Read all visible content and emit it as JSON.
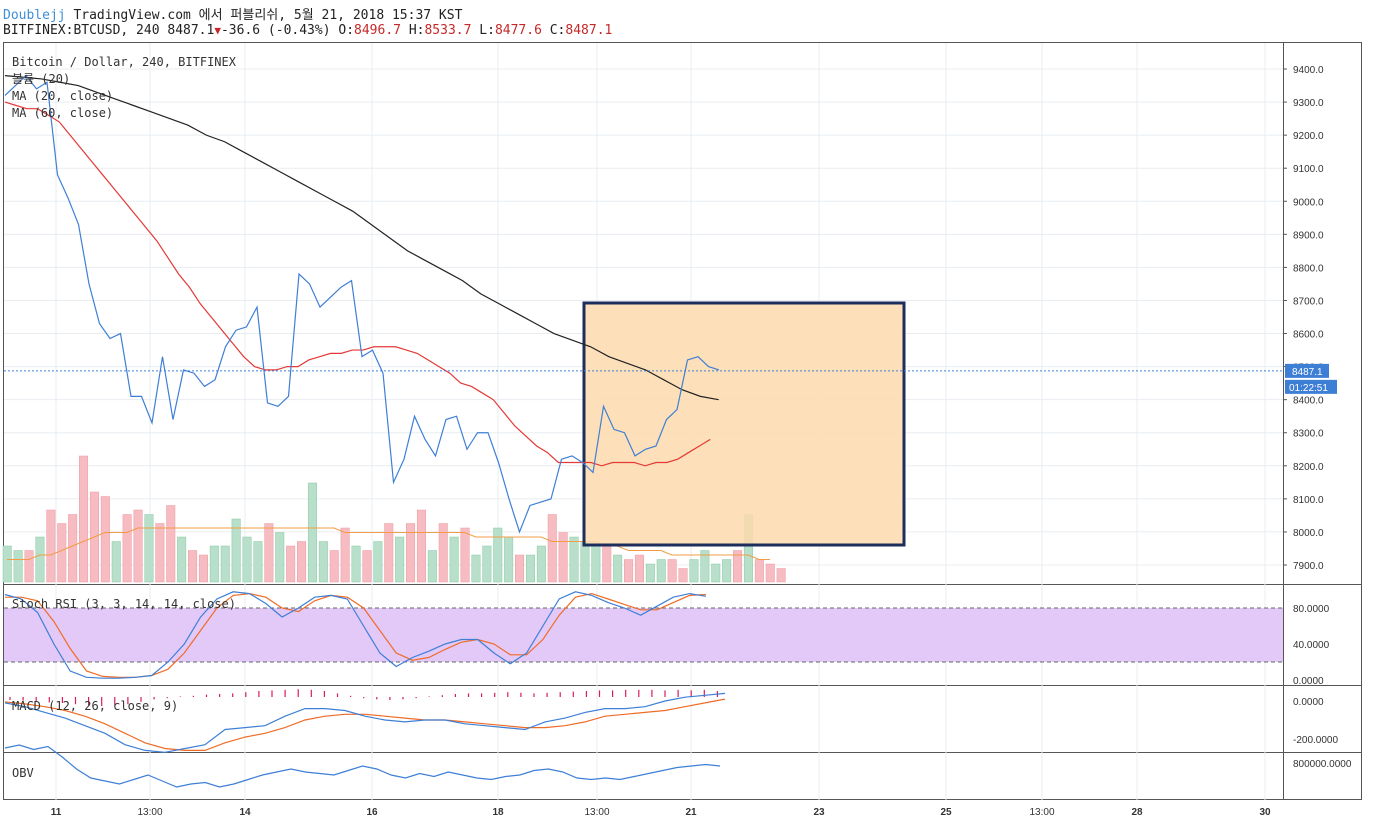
{
  "header": {
    "author": "Doublejj",
    "published": "TradingView.com 에서 퍼블리쉬, 5월 21, 2018 15:37 KST",
    "symbol": "BITFINEX:BTCUSD, 240",
    "last": "8487.1",
    "change": "-36.6 (-0.43%)",
    "open_label": "O:",
    "open": "8496.7",
    "high_label": "H:",
    "high": "8533.7",
    "low_label": "L:",
    "low": "8477.6",
    "close_label": "C:",
    "close": "8487.1"
  },
  "legend": {
    "title": "Bitcoin / Dollar, 240, BITFINEX",
    "volume": "볼륨 (20)",
    "ma20": "MA (20, close)",
    "ma60": "MA (60, close)"
  },
  "price_axis": {
    "ticks": [
      "9400.0",
      "9300.0",
      "9200.0",
      "9100.0",
      "9000.0",
      "8900.0",
      "8800.0",
      "8700.0",
      "8600.0",
      "8500.0",
      "8400.0",
      "8300.0",
      "8200.0",
      "8100.0",
      "8000.0",
      "7900.0"
    ],
    "last_price_badge": "8487.1",
    "countdown_badge": "01:22:51"
  },
  "rsi": {
    "label": "Stoch RSI (3, 3, 14, 14, close)",
    "ticks": [
      "80.0000",
      "40.0000",
      "0.0000"
    ]
  },
  "macd": {
    "label": "MACD (12, 26, close, 9)",
    "ticks": [
      "0.0000",
      "-200.0000"
    ]
  },
  "obv": {
    "label": "OBV",
    "ticks": [
      "800000.0000"
    ]
  },
  "x_axis": {
    "labels": [
      "11",
      "13:00",
      "14",
      "16",
      "18",
      "13:00",
      "21",
      "23",
      "25",
      "13:00",
      "28",
      "30"
    ]
  },
  "colors": {
    "price_line": "#3e7fd6",
    "ma20": "#e53935",
    "ma60": "#222222",
    "vol_up": "#b7dfc9",
    "vol_down": "#f6bcc2",
    "vol_ma": "#f39c45",
    "rsi_band": "#e3c9f8",
    "rsi_k": "#3e7fd6",
    "rsi_d": "#ef6c27",
    "macd_hist": "#d81b60",
    "highlight_fill": "#fddbad",
    "highlight_border": "#1e2e5c",
    "badge_blue": "#3e7fd6"
  },
  "chart_data": [
    {
      "type": "line",
      "title": "Bitcoin / Dollar, 240, BITFINEX",
      "ylim": [
        7850,
        9460
      ],
      "y_ticks": [
        9400,
        9300,
        9200,
        9100,
        9000,
        8900,
        8800,
        8700,
        8600,
        8500,
        8400,
        8300,
        8200,
        8100,
        8000,
        7900
      ],
      "x_labels": [
        "11",
        "13:00",
        "14",
        "16",
        "18",
        "13:00",
        "21",
        "23",
        "25",
        "13:00",
        "28",
        "30"
      ],
      "series": [
        {
          "name": "BITFINEX:BTCUSD",
          "values": [
            9320,
            9350,
            9380,
            9340,
            9360,
            9080,
            9010,
            8930,
            8750,
            8630,
            8585,
            8600,
            8410,
            8410,
            8330,
            8530,
            8340,
            8490,
            8480,
            8440,
            8460,
            8560,
            8610,
            8620,
            8680,
            8390,
            8380,
            8410,
            8780,
            8750,
            8680,
            8710,
            8740,
            8760,
            8530,
            8550,
            8480,
            8150,
            8220,
            8350,
            8280,
            8230,
            8340,
            8350,
            8250,
            8300,
            8300,
            8210,
            8100,
            8000,
            8080,
            8090,
            8100,
            8220,
            8230,
            8210,
            8180,
            8380,
            8310,
            8300,
            8230,
            8250,
            8260,
            8340,
            8370,
            8520,
            8530,
            8500,
            8490
          ]
        },
        {
          "name": "MA (20, close)",
          "values": [
            9300,
            9290,
            9280,
            9280,
            9260,
            9240,
            9200,
            9160,
            9120,
            9080,
            9040,
            9000,
            8960,
            8920,
            8880,
            8830,
            8780,
            8740,
            8690,
            8650,
            8610,
            8570,
            8530,
            8500,
            8490,
            8490,
            8500,
            8500,
            8520,
            8530,
            8540,
            8540,
            8550,
            8550,
            8560,
            8560,
            8560,
            8550,
            8540,
            8520,
            8500,
            8480,
            8450,
            8440,
            8420,
            8400,
            8360,
            8320,
            8290,
            8260,
            8240,
            8210,
            8210,
            8210,
            8210,
            8200,
            8210,
            8210,
            8210,
            8200,
            8210,
            8210,
            8220,
            8240,
            8260,
            8280
          ]
        },
        {
          "name": "MA (60, close)",
          "values": [
            9380,
            9375,
            9370,
            9360,
            9350,
            9330,
            9310,
            9290,
            9270,
            9250,
            9230,
            9200,
            9180,
            9150,
            9120,
            9090,
            9060,
            9030,
            9000,
            8970,
            8930,
            8890,
            8850,
            8820,
            8790,
            8760,
            8720,
            8690,
            8660,
            8630,
            8600,
            8580,
            8560,
            8530,
            8510,
            8490,
            8460,
            8430,
            8410,
            8400
          ]
        }
      ]
    },
    {
      "type": "bar",
      "title": "볼륨 (20)",
      "values": [
        8,
        7,
        7,
        10,
        16,
        13,
        15,
        28,
        20,
        19,
        9,
        15,
        16,
        15,
        13,
        17,
        10,
        7,
        6,
        8,
        8,
        14,
        10,
        9,
        13,
        11,
        8,
        9,
        22,
        9,
        7,
        12,
        8,
        7,
        9,
        13,
        10,
        13,
        16,
        7,
        13,
        10,
        12,
        6,
        8,
        12,
        10,
        6,
        6,
        8,
        15,
        11,
        10,
        9,
        8,
        8,
        6,
        5,
        6,
        4,
        5,
        5,
        3,
        5,
        7,
        4,
        5,
        7,
        15,
        5,
        4,
        3
      ],
      "direction": [
        "u",
        "u",
        "d",
        "u",
        "d",
        "d",
        "d",
        "d",
        "d",
        "d",
        "u",
        "d",
        "d",
        "u",
        "d",
        "d",
        "u",
        "d",
        "d",
        "u",
        "u",
        "u",
        "u",
        "u",
        "d",
        "u",
        "d",
        "d",
        "u",
        "u",
        "d",
        "d",
        "u",
        "d",
        "u",
        "d",
        "u",
        "d",
        "d",
        "u",
        "d",
        "u",
        "d",
        "u",
        "u",
        "u",
        "u",
        "d",
        "u",
        "u",
        "d",
        "d",
        "u",
        "u",
        "u",
        "d",
        "u",
        "d",
        "d",
        "u",
        "u",
        "d",
        "d",
        "u",
        "u",
        "u",
        "u",
        "d",
        "u",
        "d",
        "d",
        "d"
      ],
      "ma_values": [
        5,
        5,
        5,
        6,
        6,
        7,
        8,
        9,
        10,
        11,
        11,
        11,
        12,
        12,
        12,
        12,
        12,
        12,
        12,
        12,
        12,
        12,
        12,
        12,
        12,
        12,
        12,
        12,
        12,
        12,
        12,
        11,
        11,
        11,
        11,
        11,
        11,
        11,
        11,
        11,
        11,
        11,
        11,
        10,
        10,
        10,
        10,
        10,
        10,
        10,
        9,
        9,
        9,
        9,
        9,
        8,
        8,
        7,
        7,
        7,
        7,
        6,
        6,
        6,
        6,
        6,
        6,
        6,
        6,
        5,
        5
      ]
    },
    {
      "type": "line",
      "title": "Stoch RSI (3, 3, 14, 14, close)",
      "ylim": [
        -5,
        100
      ],
      "band": [
        20,
        80
      ],
      "series": [
        {
          "name": "K",
          "values": [
            95,
            90,
            75,
            40,
            10,
            3,
            2,
            2,
            3,
            5,
            20,
            40,
            70,
            90,
            98,
            96,
            85,
            70,
            80,
            92,
            94,
            90,
            60,
            30,
            15,
            25,
            32,
            40,
            45,
            45,
            30,
            18,
            30,
            60,
            90,
            98,
            94,
            86,
            80,
            72,
            82,
            92,
            96,
            93
          ]
        },
        {
          "name": "D",
          "values": [
            92,
            92,
            88,
            65,
            35,
            10,
            4,
            3,
            3,
            5,
            12,
            30,
            55,
            80,
            94,
            96,
            92,
            80,
            76,
            88,
            94,
            92,
            80,
            55,
            30,
            22,
            25,
            34,
            42,
            45,
            40,
            28,
            28,
            45,
            72,
            92,
            96,
            90,
            84,
            78,
            78,
            86,
            94,
            95
          ]
        }
      ]
    },
    {
      "type": "line",
      "title": "MACD (12, 26, close, 9)",
      "ylim": [
        -300,
        50
      ],
      "series": [
        {
          "name": "MACD",
          "values": [
            -10,
            -30,
            -60,
            -90,
            -130,
            -170,
            -230,
            -260,
            -270,
            -250,
            -230,
            -150,
            -140,
            -130,
            -80,
            -40,
            -40,
            -50,
            -80,
            -100,
            -110,
            -100,
            -100,
            -120,
            -130,
            -140,
            -150,
            -110,
            -90,
            -60,
            -40,
            -40,
            -30,
            0,
            20,
            30,
            40
          ]
        },
        {
          "name": "Signal",
          "values": [
            -5,
            -15,
            -30,
            -50,
            -80,
            -120,
            -170,
            -220,
            -250,
            -260,
            -260,
            -220,
            -190,
            -170,
            -140,
            -100,
            -80,
            -70,
            -70,
            -80,
            -90,
            -100,
            -100,
            -110,
            -120,
            -130,
            -140,
            -140,
            -130,
            -110,
            -80,
            -70,
            -60,
            -50,
            -30,
            -10,
            10
          ]
        }
      ],
      "histogram": [
        -25,
        -30,
        -40,
        -45,
        -50,
        -60,
        -70,
        -75,
        -70,
        -60,
        -40,
        -20,
        -10,
        5,
        10,
        20,
        25,
        30,
        40,
        50,
        55,
        60,
        65,
        60,
        50,
        30,
        10,
        -10,
        -20,
        -25,
        -20,
        -10,
        5,
        15,
        25,
        30,
        30,
        35,
        40,
        35,
        30,
        35,
        40,
        45,
        50,
        55,
        55,
        60,
        60,
        60,
        55,
        60,
        55,
        60,
        50
      ]
    },
    {
      "type": "line",
      "title": "OBV",
      "ylim": [
        500000,
        900000
      ],
      "series": [
        {
          "name": "OBV",
          "values": [
            850000,
            860000,
            845000,
            855000,
            820000,
            780000,
            750000,
            740000,
            730000,
            745000,
            760000,
            740000,
            720000,
            730000,
            735000,
            720000,
            730000,
            745000,
            760000,
            770000,
            780000,
            770000,
            765000,
            760000,
            775000,
            790000,
            780000,
            760000,
            750000,
            765000,
            755000,
            770000,
            760000,
            750000,
            745000,
            755000,
            760000,
            775000,
            780000,
            770000,
            750000,
            745000,
            750000,
            745000,
            755000,
            765000,
            775000,
            785000,
            790000,
            795000,
            790000
          ]
        }
      ]
    }
  ]
}
